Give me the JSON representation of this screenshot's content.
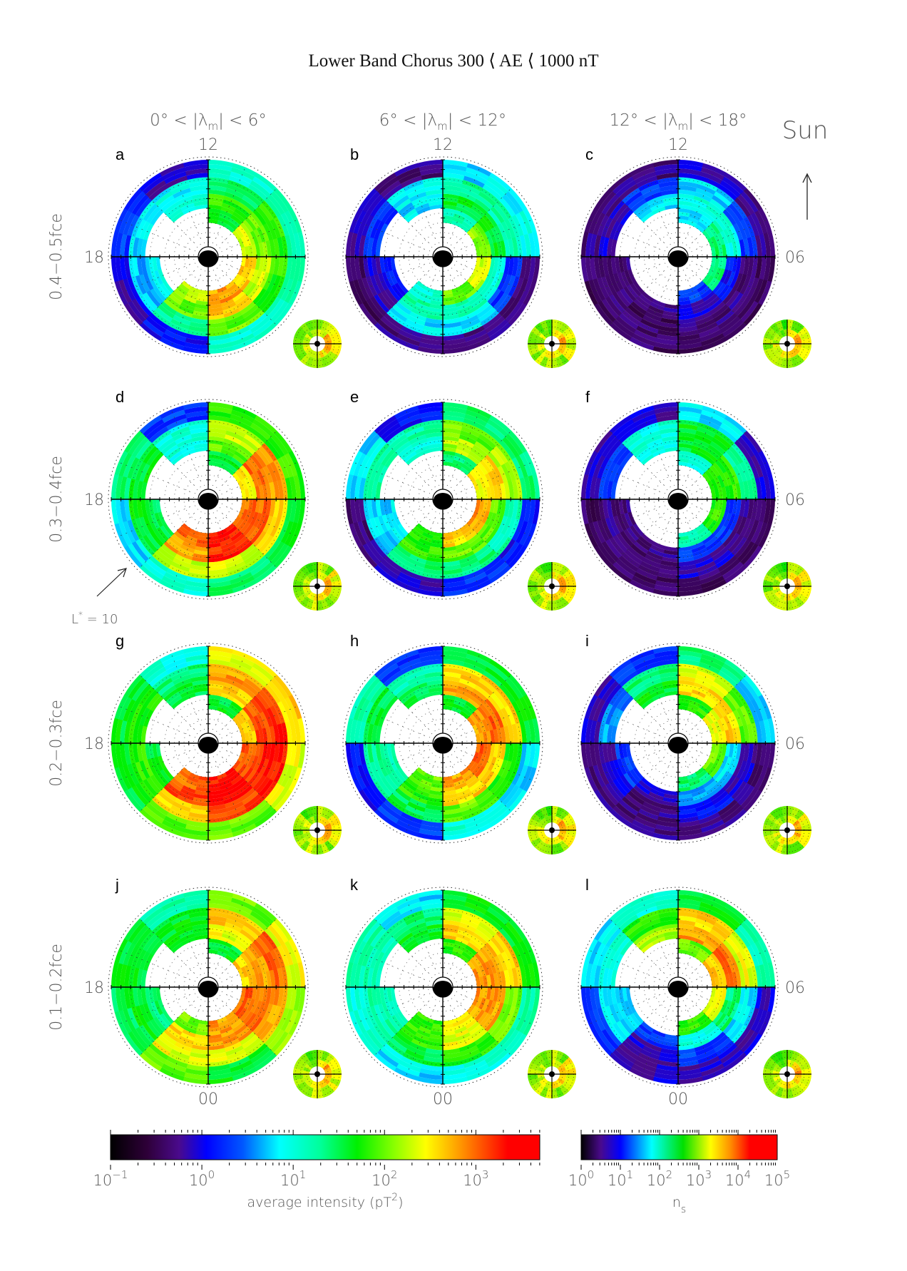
{
  "title": "Lower Band Chorus 300 ⟨ AE ⟨ 1000 nT",
  "column_headers": [
    {
      "pre": "0° < |λ",
      "sub": "m",
      "post": "| < 6°"
    },
    {
      "pre": "6° < |λ",
      "sub": "m",
      "post": "| < 12°"
    },
    {
      "pre": "12° < |λ",
      "sub": "m",
      "post": "| < 18°"
    }
  ],
  "row_labels": [
    "0.4−0.5fce",
    "0.3−0.4fce",
    "0.2−0.3fce",
    "0.1−0.2fce"
  ],
  "mlt_labels": {
    "top": "12",
    "left": "18",
    "right": "06",
    "bottom": "00"
  },
  "sun_label": "Sun",
  "lstar_annotation": {
    "base": "L",
    "sup": "*",
    "rest": " = 10"
  },
  "colors": {
    "axis": "#000000",
    "label_gray": "#555555"
  },
  "chart_data": {
    "type": "heatmap",
    "projection": "polar (MLT vs L*), noon up, dawn (06) right",
    "mlt_bins": [
      "00-03",
      "03-06",
      "06-09",
      "09-12",
      "12-15",
      "15-18",
      "18-21",
      "21-24"
    ],
    "lstar_bins": [
      3.5,
      5,
      6.5,
      8.2,
      10
    ],
    "lstar_max": 10,
    "value_unit": "log10 average intensity (pT^2)",
    "panels": [
      {
        "letter": "a",
        "values": [
          [
            2.8,
            2.6,
            2.0,
            1.0
          ],
          [
            2.6,
            2.3,
            1.8,
            1.2
          ],
          [
            2.3,
            2.0,
            1.8,
            1.2
          ],
          [
            1.6,
            1.8,
            1.4,
            1.0
          ],
          [
            null,
            1.0,
            0.9,
            -0.1
          ],
          [
            null,
            null,
            0.8,
            0.3
          ],
          [
            null,
            0.9,
            0.7,
            -0.1
          ],
          [
            2.2,
            2.0,
            1.3,
            0.1
          ]
        ]
      },
      {
        "letter": "b",
        "values": [
          [
            2.0,
            1.2,
            0.8,
            -0.3
          ],
          [
            2.3,
            1.0,
            0.3,
            -0.3
          ],
          [
            2.1,
            1.6,
            1.2,
            0.9
          ],
          [
            1.2,
            1.6,
            1.3,
            0.8
          ],
          [
            null,
            0.8,
            0.9,
            -0.3
          ],
          [
            null,
            null,
            0.3,
            -0.1
          ],
          [
            null,
            0.1,
            -0.1,
            -0.4
          ],
          [
            1.0,
            1.2,
            0.8,
            -0.3
          ]
        ]
      },
      {
        "letter": "c",
        "values": [
          [
            0.3,
            -0.1,
            -0.3,
            -0.4
          ],
          [
            1.4,
            0.1,
            -0.3,
            -0.4
          ],
          [
            1.4,
            1.0,
            0.3,
            -0.3
          ],
          [
            0.8,
            1.0,
            0.8,
            -0.1
          ],
          [
            null,
            0.8,
            0.3,
            -0.3
          ],
          [
            null,
            null,
            -0.1,
            -0.3
          ],
          [
            null,
            -0.3,
            -0.3,
            -0.4
          ],
          [
            null,
            -0.3,
            -0.4,
            -0.4
          ]
        ]
      },
      {
        "letter": "d",
        "values": [
          [
            3.3,
            3.2,
            2.3,
            1.4
          ],
          [
            3.0,
            3.0,
            2.6,
            1.6
          ],
          [
            2.5,
            3.0,
            2.8,
            1.8
          ],
          [
            1.6,
            2.0,
            2.3,
            1.8
          ],
          [
            null,
            1.0,
            1.0,
            0.3
          ],
          [
            null,
            null,
            1.6,
            1.4
          ],
          [
            null,
            1.5,
            1.6,
            0.8
          ],
          [
            3.0,
            2.8,
            2.2,
            1.0
          ]
        ]
      },
      {
        "letter": "e",
        "values": [
          [
            2.6,
            2.0,
            1.4,
            0.3
          ],
          [
            2.8,
            2.0,
            1.2,
            0.1
          ],
          [
            2.5,
            2.6,
            2.2,
            1.4
          ],
          [
            1.4,
            2.2,
            2.0,
            1.4
          ],
          [
            null,
            1.0,
            1.2,
            0.1
          ],
          [
            null,
            null,
            1.2,
            0.8
          ],
          [
            null,
            0.8,
            0.8,
            -0.3
          ],
          [
            1.8,
            1.8,
            1.4,
            -0.1
          ]
        ]
      },
      {
        "letter": "f",
        "values": [
          [
            1.2,
            0.3,
            -0.1,
            -0.4
          ],
          [
            1.8,
            0.3,
            -0.3,
            -0.4
          ],
          [
            1.8,
            1.8,
            1.2,
            -0.1
          ],
          [
            1.0,
            1.6,
            1.6,
            0.8
          ],
          [
            null,
            1.0,
            1.0,
            -0.1
          ],
          [
            null,
            null,
            0.3,
            -0.1
          ],
          [
            null,
            -0.3,
            -0.3,
            -0.4
          ],
          [
            null,
            -0.3,
            -0.4,
            -0.4
          ]
        ]
      },
      {
        "letter": "g",
        "values": [
          [
            3.3,
            3.4,
            3.1,
            2.0
          ],
          [
            3.0,
            3.2,
            3.3,
            2.4
          ],
          [
            2.6,
            3.1,
            3.2,
            2.6
          ],
          [
            1.6,
            2.6,
            2.8,
            2.4
          ],
          [
            null,
            1.5,
            1.4,
            1.0
          ],
          [
            null,
            null,
            1.8,
            1.6
          ],
          [
            null,
            1.6,
            1.8,
            1.6
          ],
          [
            3.0,
            3.1,
            2.6,
            2.0
          ]
        ]
      },
      {
        "letter": "h",
        "values": [
          [
            2.8,
            2.6,
            2.0,
            1.0
          ],
          [
            3.0,
            2.6,
            1.8,
            0.8
          ],
          [
            2.8,
            3.0,
            2.6,
            1.6
          ],
          [
            1.6,
            2.8,
            2.6,
            1.6
          ],
          [
            null,
            1.5,
            1.2,
            0.3
          ],
          [
            null,
            null,
            1.5,
            1.2
          ],
          [
            null,
            1.2,
            1.3,
            0.1
          ],
          [
            2.0,
            1.8,
            1.5,
            0.3
          ]
        ]
      },
      {
        "letter": "i",
        "values": [
          [
            1.4,
            0.6,
            0.1,
            -0.3
          ],
          [
            2.0,
            0.8,
            -0.1,
            -0.3
          ],
          [
            2.4,
            2.6,
            2.0,
            0.8
          ],
          [
            1.8,
            2.6,
            2.4,
            1.4
          ],
          [
            null,
            1.6,
            1.4,
            0.3
          ],
          [
            null,
            null,
            0.6,
            -0.1
          ],
          [
            null,
            0.3,
            -0.1,
            -0.3
          ],
          [
            null,
            -0.1,
            -0.3,
            -0.3
          ]
        ]
      },
      {
        "letter": "j",
        "values": [
          [
            2.8,
            2.8,
            2.4,
            1.6
          ],
          [
            3.0,
            3.0,
            2.8,
            2.2
          ],
          [
            2.6,
            2.8,
            3.0,
            2.4
          ],
          [
            1.6,
            2.4,
            2.6,
            2.0
          ],
          [
            null,
            1.6,
            1.6,
            1.2
          ],
          [
            null,
            null,
            1.6,
            1.6
          ],
          [
            null,
            1.4,
            1.6,
            1.5
          ],
          [
            2.0,
            2.6,
            2.4,
            2.0
          ]
        ]
      },
      {
        "letter": "k",
        "values": [
          [
            2.4,
            2.4,
            1.8,
            1.0
          ],
          [
            2.8,
            2.8,
            2.0,
            1.2
          ],
          [
            2.8,
            2.8,
            2.6,
            1.6
          ],
          [
            1.8,
            2.6,
            2.4,
            1.6
          ],
          [
            null,
            1.6,
            1.4,
            0.8
          ],
          [
            null,
            null,
            1.2,
            1.2
          ],
          [
            null,
            1.2,
            1.2,
            1.0
          ],
          [
            1.8,
            1.8,
            1.5,
            0.8
          ]
        ]
      },
      {
        "letter": "l",
        "values": [
          [
            1.8,
            1.0,
            0.3,
            -0.1
          ],
          [
            2.4,
            1.4,
            0.8,
            -0.1
          ],
          [
            2.6,
            3.0,
            2.4,
            1.2
          ],
          [
            2.0,
            2.8,
            2.6,
            1.6
          ],
          [
            null,
            2.2,
            1.8,
            1.0
          ],
          [
            null,
            null,
            1.0,
            0.8
          ],
          [
            null,
            0.8,
            0.8,
            0.3
          ],
          [
            null,
            0.3,
            -0.1,
            -0.1
          ]
        ]
      }
    ],
    "inset_ns_log10": [
      [
        3.4,
        3.0
      ],
      [
        3.6,
        3.2
      ],
      [
        3.7,
        3.3
      ],
      [
        3.3,
        3.0
      ],
      [
        2.9,
        2.8
      ],
      [
        3.1,
        3.0
      ],
      [
        3.2,
        3.0
      ],
      [
        3.3,
        3.1
      ]
    ],
    "colorbars": [
      {
        "label_pre": "average intensity (pT",
        "label_sup": "2",
        "label_post": ")",
        "range_log10": [
          -1,
          3.7
        ],
        "ticks": [
          {
            "base": "10",
            "exp": "−1",
            "log": -1
          },
          {
            "base": "10",
            "exp": "0",
            "log": 0
          },
          {
            "base": "10",
            "exp": "1",
            "log": 1
          },
          {
            "base": "10",
            "exp": "2",
            "log": 2
          },
          {
            "base": "10",
            "exp": "3",
            "log": 3
          }
        ]
      },
      {
        "label_pre": "n",
        "label_sub": "s",
        "range_log10": [
          0,
          5
        ],
        "ticks": [
          {
            "base": "10",
            "exp": "0",
            "log": 0
          },
          {
            "base": "10",
            "exp": "1",
            "log": 1
          },
          {
            "base": "10",
            "exp": "2",
            "log": 2
          },
          {
            "base": "10",
            "exp": "3",
            "log": 3
          },
          {
            "base": "10",
            "exp": "4",
            "log": 4
          },
          {
            "base": "10",
            "exp": "5",
            "log": 5
          }
        ]
      }
    ]
  }
}
